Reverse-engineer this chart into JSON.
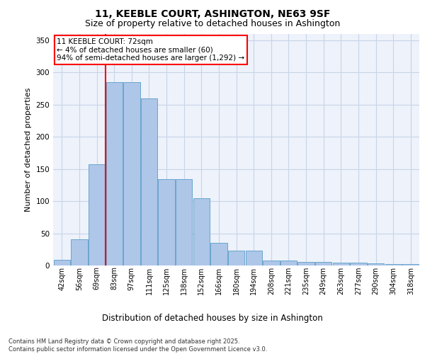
{
  "title_line1": "11, KEEBLE COURT, ASHINGTON, NE63 9SF",
  "title_line2": "Size of property relative to detached houses in Ashington",
  "xlabel": "Distribution of detached houses by size in Ashington",
  "ylabel": "Number of detached properties",
  "categories": [
    "42sqm",
    "56sqm",
    "69sqm",
    "83sqm",
    "97sqm",
    "111sqm",
    "125sqm",
    "138sqm",
    "152sqm",
    "166sqm",
    "180sqm",
    "194sqm",
    "208sqm",
    "221sqm",
    "235sqm",
    "249sqm",
    "263sqm",
    "277sqm",
    "290sqm",
    "304sqm",
    "318sqm"
  ],
  "values": [
    9,
    41,
    157,
    285,
    285,
    259,
    134,
    134,
    104,
    35,
    23,
    23,
    8,
    8,
    5,
    5,
    4,
    4,
    3,
    2,
    2
  ],
  "bar_color": "#aec6e8",
  "bar_edge_color": "#5a9ec8",
  "grid_color": "#c8d4e8",
  "background_color": "#eef2fa",
  "red_line_x": 2.5,
  "annotation_text": "11 KEEBLE COURT: 72sqm\n← 4% of detached houses are smaller (60)\n94% of semi-detached houses are larger (1,292) →",
  "ann_box_color": "white",
  "ann_edge_color": "red",
  "footnote": "Contains HM Land Registry data © Crown copyright and database right 2025.\nContains public sector information licensed under the Open Government Licence v3.0.",
  "ylim": [
    0,
    360
  ],
  "yticks": [
    0,
    50,
    100,
    150,
    200,
    250,
    300,
    350
  ],
  "title_fontsize": 10,
  "subtitle_fontsize": 9,
  "ylabel_fontsize": 8,
  "xlabel_fontsize": 8.5,
  "tick_fontsize": 7,
  "ann_fontsize": 7.5,
  "footnote_fontsize": 6
}
